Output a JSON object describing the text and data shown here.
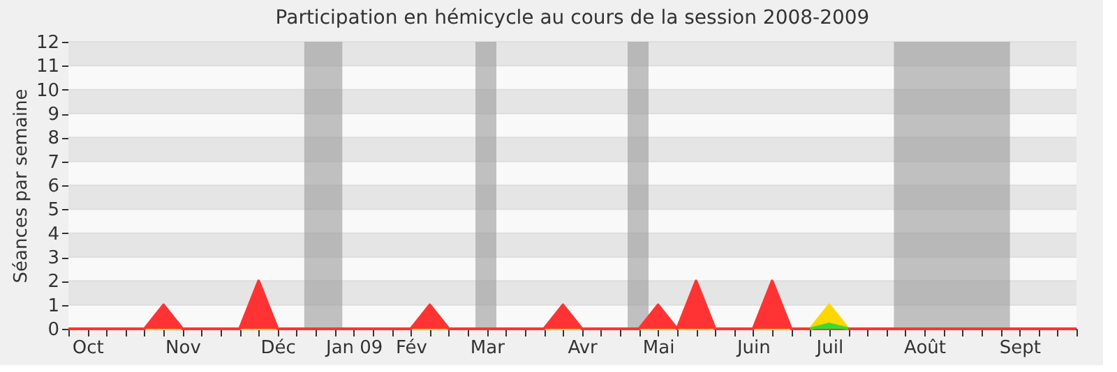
{
  "chart_data": {
    "type": "area",
    "title": "Participation en hémicycle au cours de la session 2008-2009",
    "ylabel": "Séances par semaine",
    "categories": [
      null,
      "Oct",
      null,
      null,
      null,
      null,
      "Nov",
      null,
      null,
      null,
      null,
      "Déc",
      null,
      null,
      null,
      "Jan 09",
      null,
      null,
      "Fév",
      null,
      null,
      null,
      "Mar",
      null,
      null,
      null,
      null,
      "Avr",
      null,
      null,
      null,
      "Mai",
      null,
      null,
      null,
      null,
      "Juin",
      null,
      null,
      null,
      "Juil",
      null,
      null,
      null,
      null,
      "Août",
      null,
      null,
      null,
      null,
      "Sept",
      null,
      null,
      null
    ],
    "series": [
      {
        "color": "#ffd700",
        "values": [
          0,
          0,
          0,
          0,
          0,
          0,
          0,
          0,
          0,
          0,
          0,
          0,
          0,
          0,
          0,
          0,
          0,
          0,
          0,
          0,
          0,
          0,
          0,
          0,
          0,
          0,
          0,
          0,
          0,
          0,
          0,
          0,
          0,
          0,
          0,
          0,
          0,
          0,
          0,
          0,
          1,
          0,
          0,
          0,
          0,
          0,
          0,
          0,
          0,
          0,
          0,
          0,
          0,
          0
        ]
      },
      {
        "color": "#ff3333",
        "values": [
          0,
          0,
          0,
          0,
          0,
          1,
          0,
          0,
          0,
          0,
          2,
          0,
          0,
          0,
          0,
          0,
          0,
          0,
          0,
          1,
          0,
          0,
          0,
          0,
          0,
          0,
          1,
          0,
          0,
          0,
          0,
          1,
          0,
          2,
          0,
          0,
          0,
          2,
          0,
          0,
          0,
          0,
          0,
          0,
          0,
          0,
          0,
          0,
          0,
          0,
          0,
          0,
          0,
          0
        ]
      },
      {
        "color": "#33dd33",
        "values": [
          null,
          null,
          null,
          null,
          null,
          null,
          null,
          null,
          null,
          null,
          null,
          null,
          null,
          null,
          null,
          null,
          null,
          null,
          null,
          null,
          null,
          null,
          null,
          null,
          null,
          null,
          null,
          null,
          null,
          null,
          null,
          null,
          null,
          null,
          null,
          null,
          null,
          null,
          null,
          0,
          0.2,
          0,
          null,
          null,
          null,
          null,
          null,
          null,
          null,
          null,
          null,
          null,
          null,
          null
        ]
      }
    ],
    "ylim": [
      0,
      12
    ],
    "yticks": [
      0,
      1,
      2,
      3,
      4,
      5,
      6,
      7,
      8,
      9,
      10,
      11,
      12
    ],
    "grid": "y"
  }
}
